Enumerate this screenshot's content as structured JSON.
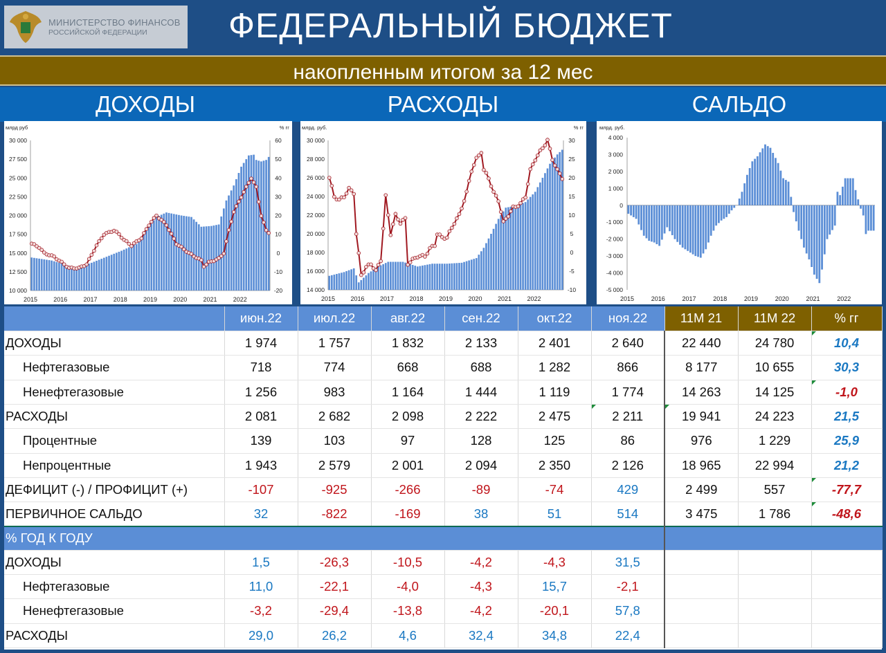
{
  "header": {
    "logo_line1": "МИНИСТЕРСТВО ФИНАНСОВ",
    "logo_line2": "РОССИЙСКОЙ ФЕДЕРАЦИИ",
    "title": "ФЕДЕРАЛЬНЫЙ БЮДЖЕТ",
    "subtitle": "накопленным итогом за 12 мес"
  },
  "sections": [
    "ДОХОДЫ",
    "РАСХОДЫ",
    "САЛЬДО"
  ],
  "colors": {
    "bar": "#5b8ed6",
    "line": "#a01820",
    "marker_fill": "#f2dcdc",
    "negative": "#c0151b",
    "positive": "#1a78c2",
    "gold": "#7e6000",
    "navy": "#1e4e86"
  },
  "chart_data": [
    {
      "type": "bar+line",
      "ylabel_left": "млрд руб",
      "ylabel_right": "% гг",
      "x_ticks": [
        "2015",
        "2016",
        "2017",
        "2018",
        "2019",
        "2020",
        "2021",
        "2022"
      ],
      "ylim_left": [
        10000,
        30000
      ],
      "ylim_right": [
        -20,
        60
      ],
      "left_ticks": [
        "10 000",
        "12 500",
        "15 000",
        "17 500",
        "20 000",
        "22 500",
        "25 000",
        "27 500",
        "30 000"
      ],
      "right_ticks": [
        "-20",
        "-10",
        "0",
        "10",
        "20",
        "30",
        "40",
        "50",
        "60"
      ],
      "series": [
        {
          "type": "bar",
          "axis": "left",
          "anchors": [
            [
              0,
              14400
            ],
            [
              8,
              14000
            ],
            [
              12,
              13600
            ],
            [
              18,
              13000
            ],
            [
              24,
              13700
            ],
            [
              30,
              14500
            ],
            [
              36,
              15300
            ],
            [
              42,
              16200
            ],
            [
              46,
              18000
            ],
            [
              50,
              19800
            ],
            [
              54,
              20400
            ],
            [
              60,
              20000
            ],
            [
              64,
              19800
            ],
            [
              68,
              18500
            ],
            [
              72,
              18600
            ],
            [
              75,
              18800
            ],
            [
              78,
              22000
            ],
            [
              81,
              24000
            ],
            [
              84,
              26500
            ],
            [
              87,
              28000
            ],
            [
              89,
              28100
            ],
            [
              90,
              27400
            ],
            [
              92,
              27200
            ],
            [
              94,
              27400
            ],
            [
              95,
              27800
            ]
          ]
        },
        {
          "type": "line",
          "axis": "right",
          "anchors": [
            [
              0,
              5
            ],
            [
              3,
              3
            ],
            [
              5,
              0
            ],
            [
              9,
              -2
            ],
            [
              13,
              -6
            ],
            [
              15,
              -8
            ],
            [
              19,
              -8
            ],
            [
              22,
              -6
            ],
            [
              26,
              4
            ],
            [
              29,
              10
            ],
            [
              33,
              12
            ],
            [
              35,
              10
            ],
            [
              37,
              7
            ],
            [
              40,
              4
            ],
            [
              44,
              8
            ],
            [
              47,
              15
            ],
            [
              50,
              20
            ],
            [
              54,
              15
            ],
            [
              58,
              5
            ],
            [
              63,
              0
            ],
            [
              68,
              -4
            ],
            [
              69,
              -7
            ],
            [
              71,
              -5
            ],
            [
              75,
              -3
            ],
            [
              77,
              0
            ],
            [
              79,
              12
            ],
            [
              81,
              22
            ],
            [
              84,
              30
            ],
            [
              88,
              40
            ],
            [
              90,
              35
            ],
            [
              92,
              20
            ],
            [
              94,
              12
            ],
            [
              95,
              11
            ]
          ]
        }
      ]
    },
    {
      "type": "bar+line",
      "ylabel_left": "млрд. руб.",
      "ylabel_right": "% гг",
      "x_ticks": [
        "2015",
        "2016",
        "2017",
        "2018",
        "2019",
        "2020",
        "2021",
        "2022"
      ],
      "ylim_left": [
        14000,
        30000
      ],
      "ylim_right": [
        -10,
        30
      ],
      "left_ticks": [
        "14 000",
        "16 000",
        "18 000",
        "20 000",
        "22 000",
        "24 000",
        "26 000",
        "28 000",
        "30 000"
      ],
      "right_ticks": [
        "-10",
        "-5",
        "0",
        "5",
        "10",
        "15",
        "20",
        "25",
        "30"
      ],
      "series": [
        {
          "type": "bar",
          "axis": "left",
          "anchors": [
            [
              0,
              15500
            ],
            [
              6,
              15900
            ],
            [
              10,
              16300
            ],
            [
              12,
              14800
            ],
            [
              16,
              15800
            ],
            [
              20,
              16500
            ],
            [
              24,
              17000
            ],
            [
              30,
              17000
            ],
            [
              36,
              16500
            ],
            [
              42,
              16800
            ],
            [
              48,
              16800
            ],
            [
              54,
              16900
            ],
            [
              60,
              17400
            ],
            [
              63,
              18500
            ],
            [
              66,
              20000
            ],
            [
              69,
              21600
            ],
            [
              72,
              22800
            ],
            [
              76,
              23000
            ],
            [
              80,
              23400
            ],
            [
              84,
              24500
            ],
            [
              86,
              25500
            ],
            [
              88,
              26500
            ],
            [
              90,
              27500
            ],
            [
              93,
              28500
            ],
            [
              95,
              29000
            ]
          ]
        },
        {
          "type": "line",
          "axis": "right",
          "anchors": [
            [
              0,
              20
            ],
            [
              2,
              15
            ],
            [
              4,
              14
            ],
            [
              6,
              15
            ],
            [
              8,
              17
            ],
            [
              10,
              16
            ],
            [
              11,
              5
            ],
            [
              13,
              -6
            ],
            [
              15,
              -4
            ],
            [
              17,
              -3
            ],
            [
              19,
              -5
            ],
            [
              21,
              -2
            ],
            [
              23,
              15
            ],
            [
              25,
              5
            ],
            [
              27,
              10
            ],
            [
              29,
              8
            ],
            [
              31,
              9
            ],
            [
              32,
              -3
            ],
            [
              34,
              -2
            ],
            [
              36,
              -1
            ],
            [
              39,
              -1
            ],
            [
              41,
              1
            ],
            [
              43,
              2
            ],
            [
              44,
              5
            ],
            [
              46,
              4
            ],
            [
              48,
              4
            ],
            [
              51,
              8
            ],
            [
              53,
              10
            ],
            [
              56,
              16
            ],
            [
              58,
              22
            ],
            [
              60,
              25
            ],
            [
              62,
              27
            ],
            [
              63,
              22
            ],
            [
              65,
              20
            ],
            [
              67,
              16
            ],
            [
              69,
              14
            ],
            [
              71,
              8
            ],
            [
              73,
              10
            ],
            [
              75,
              12
            ],
            [
              78,
              13
            ],
            [
              80,
              15
            ],
            [
              82,
              22
            ],
            [
              84,
              25
            ],
            [
              86,
              27
            ],
            [
              88,
              29
            ],
            [
              89,
              30
            ],
            [
              91,
              25
            ],
            [
              93,
              22
            ],
            [
              95,
              20
            ]
          ]
        }
      ]
    },
    {
      "type": "bar",
      "ylabel": "млрд. руб.",
      "x_ticks": [
        "2015",
        "2016",
        "2017",
        "2018",
        "2019",
        "2020",
        "2021",
        "2022"
      ],
      "ylim": [
        -5000,
        4000
      ],
      "ticks": [
        "-5 000",
        "-4 000",
        "-3 000",
        "-2 000",
        "-1 000",
        "0",
        "1 000",
        "2 000",
        "3 000",
        "4 000"
      ],
      "series": [
        {
          "type": "bar",
          "anchors": [
            [
              0,
              -500
            ],
            [
              3,
              -800
            ],
            [
              6,
              -1800
            ],
            [
              8,
              -2100
            ],
            [
              10,
              -2200
            ],
            [
              12,
              -2400
            ],
            [
              15,
              -1300
            ],
            [
              18,
              -2000
            ],
            [
              21,
              -2500
            ],
            [
              24,
              -2800
            ],
            [
              26,
              -3000
            ],
            [
              28,
              -3100
            ],
            [
              30,
              -2600
            ],
            [
              32,
              -1800
            ],
            [
              34,
              -1200
            ],
            [
              36,
              -900
            ],
            [
              38,
              -700
            ],
            [
              40,
              -300
            ],
            [
              42,
              0
            ],
            [
              44,
              800
            ],
            [
              46,
              1800
            ],
            [
              48,
              2600
            ],
            [
              50,
              2900
            ],
            [
              53,
              3600
            ],
            [
              55,
              3400
            ],
            [
              58,
              2500
            ],
            [
              60,
              1600
            ],
            [
              62,
              1400
            ],
            [
              64,
              -400
            ],
            [
              66,
              -1500
            ],
            [
              68,
              -2500
            ],
            [
              70,
              -3200
            ],
            [
              72,
              -4100
            ],
            [
              74,
              -4600
            ],
            [
              75,
              -3800
            ],
            [
              77,
              -2000
            ],
            [
              80,
              -1200
            ],
            [
              81,
              800
            ],
            [
              82,
              600
            ],
            [
              83,
              1100
            ],
            [
              84,
              1600
            ],
            [
              87,
              1600
            ],
            [
              88,
              900
            ],
            [
              90,
              -200
            ],
            [
              91,
              -600
            ],
            [
              92,
              -1700
            ],
            [
              93,
              -1500
            ]
          ]
        }
      ]
    },
    {
      "type": "table",
      "columns": [
        "июн.22",
        "июл.22",
        "авг.22",
        "сен.22",
        "окт.22",
        "ноя.22",
        "11М 21",
        "11М 22",
        "% гг"
      ],
      "rows": [
        {
          "label": "ДОХОДЫ",
          "values": [
            "1 974",
            "1 757",
            "1 832",
            "2 133",
            "2 401",
            "2 640",
            "22 440",
            "24 780",
            "10,4"
          ]
        },
        {
          "label": "Нефтегазовые",
          "values": [
            "718",
            "774",
            "668",
            "688",
            "1 282",
            "866",
            "8 177",
            "10 655",
            "30,3"
          ]
        },
        {
          "label": "Ненефтегазовые",
          "values": [
            "1 256",
            "983",
            "1 164",
            "1 444",
            "1 119",
            "1 774",
            "14 263",
            "14 125",
            "-1,0"
          ]
        },
        {
          "label": "РАСХОДЫ",
          "values": [
            "2 081",
            "2 682",
            "2 098",
            "2 222",
            "2 475",
            "2 211",
            "19 941",
            "24 223",
            "21,5"
          ]
        },
        {
          "label": "Процентные",
          "values": [
            "139",
            "103",
            "97",
            "128",
            "125",
            "86",
            "976",
            "1 229",
            "25,9"
          ]
        },
        {
          "label": "Непроцентные",
          "values": [
            "1 943",
            "2 579",
            "2 001",
            "2 094",
            "2 350",
            "2 126",
            "18 965",
            "22 994",
            "21,2"
          ]
        },
        {
          "label": "ДЕФИЦИТ (-) / ПРОФИЦИТ (+)",
          "values": [
            "-107",
            "-925",
            "-266",
            "-89",
            "-74",
            "429",
            "2 499",
            "557",
            "-77,7"
          ]
        },
        {
          "label": "ПЕРВИЧНОЕ САЛЬДО",
          "values": [
            "32",
            "-822",
            "-169",
            "38",
            "51",
            "514",
            "3 475",
            "1 786",
            "-48,6"
          ]
        }
      ],
      "yoy_header": "% ГОД К ГОДУ",
      "yoy_rows": [
        {
          "label": "ДОХОДЫ",
          "values": [
            "1,5",
            "-26,3",
            "-10,5",
            "-4,2",
            "-4,3",
            "31,5"
          ]
        },
        {
          "label": "Нефтегазовые",
          "values": [
            "11,0",
            "-22,1",
            "-4,0",
            "-4,3",
            "15,7",
            "-2,1"
          ]
        },
        {
          "label": "Ненефтегазовые",
          "values": [
            "-3,2",
            "-29,4",
            "-13,8",
            "-4,2",
            "-20,1",
            "57,8"
          ]
        },
        {
          "label": "РАСХОДЫ",
          "values": [
            "29,0",
            "26,2",
            "4,6",
            "32,4",
            "34,8",
            "22,4"
          ]
        }
      ]
    }
  ]
}
